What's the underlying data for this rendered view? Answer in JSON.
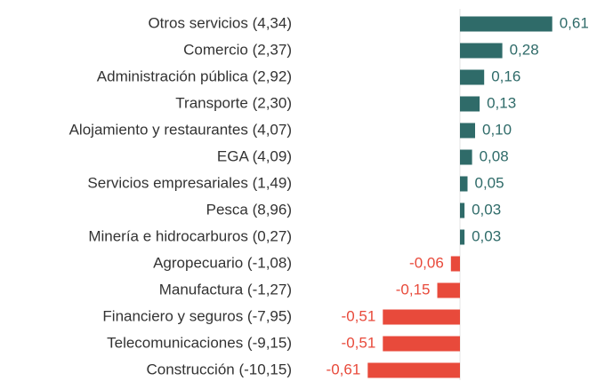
{
  "chart_data": {
    "type": "bar",
    "orientation": "horizontal",
    "categories": [
      "Otros servicios (4,34)",
      "Comercio (2,37)",
      "Administración pública (2,92)",
      "Transporte (2,30)",
      "Alojamiento y restaurantes (4,07)",
      "EGA (4,09)",
      "Servicios empresariales (1,49)",
      "Pesca (8,96)",
      "Minería e hidrocarburos (0,27)",
      "Agropecuario (-1,08)",
      "Manufactura (-1,27)",
      "Financiero y seguros (-7,95)",
      "Telecomunicaciones (-9,15)",
      "Construcción (-10,15)"
    ],
    "values": [
      0.61,
      0.28,
      0.16,
      0.13,
      0.1,
      0.08,
      0.05,
      0.03,
      0.03,
      -0.06,
      -0.15,
      -0.51,
      -0.51,
      -0.61
    ],
    "value_labels": [
      "0,61",
      "0,28",
      "0,16",
      "0,13",
      "0,10",
      "0,08",
      "0,05",
      "0,03",
      "0,03",
      "-0,06",
      "-0,15",
      "-0,51",
      "-0,51",
      "-0,61"
    ],
    "color": "#2f6b69",
    "negative_color": "#e84a3b",
    "xlim": [
      -0.7,
      0.7
    ]
  }
}
